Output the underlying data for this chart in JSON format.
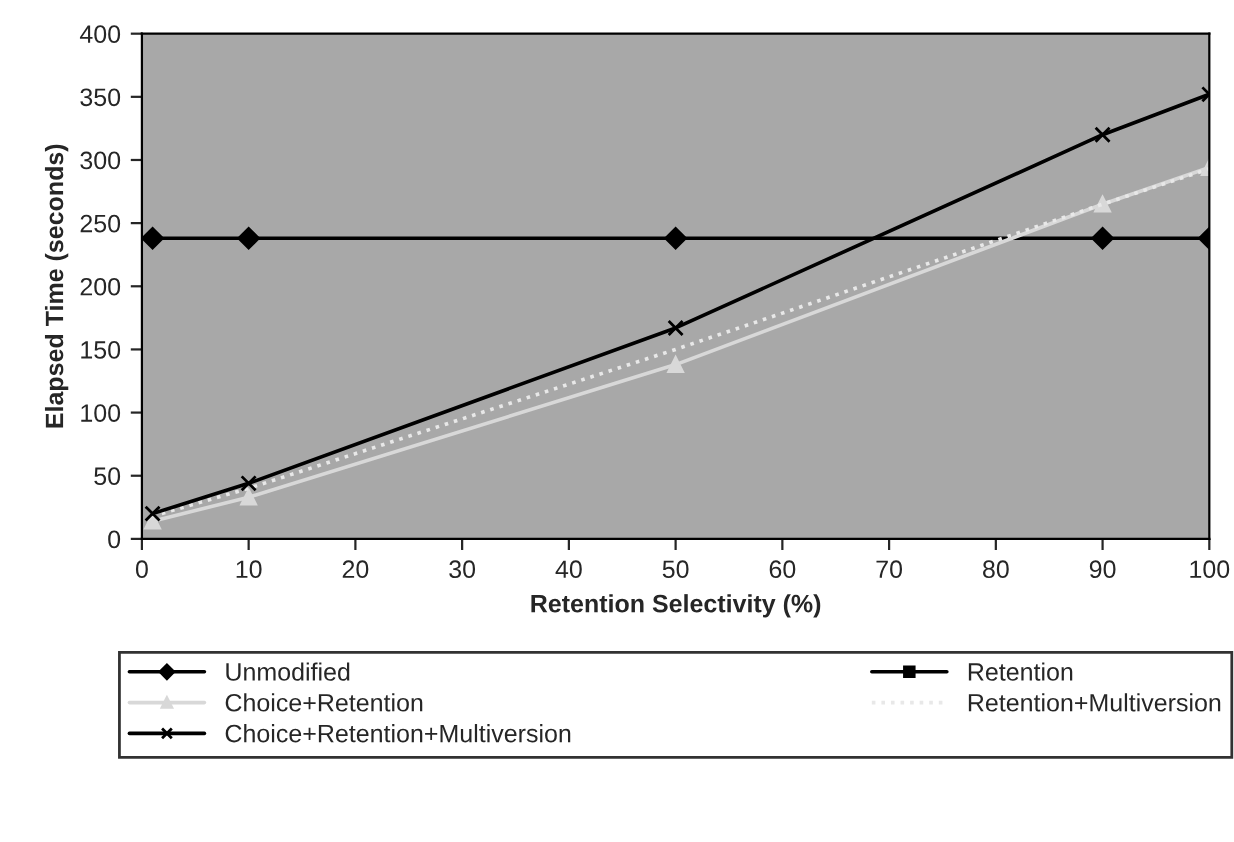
{
  "chart_data": {
    "type": "line",
    "xlabel": "Retention Selectivity (%)",
    "ylabel": "Elapsed Time (seconds)",
    "x": [
      1,
      10,
      50,
      90,
      100
    ],
    "xlim": [
      0,
      100
    ],
    "xticks": [
      0,
      10,
      20,
      30,
      40,
      50,
      60,
      70,
      80,
      90,
      100
    ],
    "ylim": [
      0,
      400
    ],
    "yticks": [
      0,
      50,
      100,
      150,
      200,
      250,
      300,
      350,
      400
    ],
    "grid": false,
    "legend": "bottom",
    "series": [
      {
        "name": "Unmodified",
        "color": "#000000",
        "marker": "diamond",
        "line_style": "solid",
        "values": [
          238,
          238,
          238,
          238,
          238
        ]
      },
      {
        "name": "Retention",
        "color": "#000000",
        "marker": "square",
        "line_style": "solid",
        "values": [
          null,
          null,
          null,
          null,
          null
        ]
      },
      {
        "name": "Choice+Retention",
        "color": "#d8d8d8",
        "marker": "triangle",
        "line_style": "solid",
        "values": [
          14,
          33,
          138,
          265,
          294
        ]
      },
      {
        "name": "Retention+Multiversion",
        "color": "#e8e8e8",
        "marker": "none",
        "line_style": "dotted",
        "values": [
          18,
          40,
          150,
          265,
          293
        ]
      },
      {
        "name": "Choice+Retention+Multiversion",
        "color": "#000000",
        "marker": "cross",
        "line_style": "solid",
        "values": [
          20,
          44,
          167,
          320,
          352
        ]
      }
    ]
  }
}
